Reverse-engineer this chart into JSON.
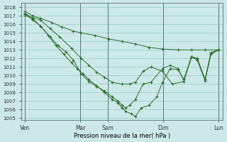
{
  "xlabel": "Pression niveau de la mer( hPa )",
  "bg_color": "#cce8e8",
  "grid_color": "#99cccc",
  "line_color": "#2d6e2d",
  "ylim": [
    1005,
    1018
  ],
  "yticks": [
    1005,
    1006,
    1007,
    1008,
    1009,
    1010,
    1011,
    1012,
    1013,
    1014,
    1015,
    1016,
    1017,
    1018
  ],
  "vlines_x": [
    0.0,
    0.286,
    0.429,
    0.714,
    1.0
  ],
  "xtick_positions": [
    0.0,
    0.286,
    0.429,
    0.714,
    1.0
  ],
  "xtick_labels": [
    "Ven",
    "Mar",
    "Sam",
    "Dim",
    "Lun"
  ],
  "line1_x": [
    0.0,
    0.04,
    0.08,
    0.14,
    0.19,
    0.25,
    0.29,
    0.36,
    0.43,
    0.5,
    0.57,
    0.64,
    0.71,
    0.79,
    0.86,
    0.93,
    1.0
  ],
  "line1_y": [
    1017.5,
    1017.0,
    1016.7,
    1016.2,
    1015.7,
    1015.2,
    1015.0,
    1014.7,
    1014.3,
    1014.0,
    1013.7,
    1013.3,
    1013.1,
    1013.0,
    1013.0,
    1013.0,
    1013.0
  ],
  "line2_x": [
    0.0,
    0.04,
    0.08,
    0.13,
    0.18,
    0.24,
    0.29,
    0.33,
    0.37,
    0.41,
    0.45,
    0.5,
    0.54,
    0.57,
    0.61,
    0.65,
    0.71,
    0.76,
    0.82,
    0.86,
    0.89,
    0.93,
    0.96,
    1.0
  ],
  "line2_y": [
    1017.0,
    1016.8,
    1016.5,
    1015.5,
    1014.5,
    1013.2,
    1012.0,
    1011.2,
    1010.4,
    1009.8,
    1009.2,
    1009.0,
    1009.0,
    1009.2,
    1010.5,
    1011.0,
    1010.5,
    1009.0,
    1009.3,
    1012.2,
    1012.0,
    1009.5,
    1012.5,
    1013.0
  ],
  "line3_x": [
    0.0,
    0.04,
    0.08,
    0.13,
    0.17,
    0.21,
    0.25,
    0.29,
    0.33,
    0.37,
    0.41,
    0.45,
    0.48,
    0.5,
    0.52,
    0.54,
    0.57,
    0.61,
    0.65,
    0.71,
    0.75,
    0.79,
    0.82,
    0.86,
    0.89,
    0.93,
    0.96,
    1.0
  ],
  "line3_y": [
    1017.2,
    1016.5,
    1015.8,
    1014.5,
    1013.5,
    1012.8,
    1011.8,
    1010.2,
    1009.3,
    1008.7,
    1008.2,
    1007.5,
    1007.0,
    1006.5,
    1006.2,
    1006.5,
    1007.2,
    1009.0,
    1009.2,
    1010.8,
    1011.2,
    1010.8,
    1009.5,
    1012.2,
    1011.9,
    1009.5,
    1012.7,
    1013.0
  ],
  "line4_x": [
    0.0,
    0.04,
    0.08,
    0.12,
    0.16,
    0.2,
    0.24,
    0.27,
    0.3,
    0.33,
    0.37,
    0.41,
    0.45,
    0.48,
    0.5,
    0.52,
    0.55,
    0.57,
    0.6,
    0.64,
    0.68,
    0.71,
    0.75,
    0.79,
    0.82,
    0.86,
    0.89,
    0.93,
    0.96,
    1.0
  ],
  "line4_y": [
    1017.3,
    1016.7,
    1015.8,
    1014.7,
    1013.5,
    1012.5,
    1011.5,
    1010.8,
    1010.2,
    1009.5,
    1008.8,
    1008.0,
    1007.2,
    1006.8,
    1006.2,
    1005.8,
    1005.5,
    1005.2,
    1006.2,
    1006.5,
    1007.5,
    1009.2,
    1010.8,
    1010.7,
    1009.5,
    1012.2,
    1011.8,
    1009.4,
    1012.5,
    1013.0
  ]
}
